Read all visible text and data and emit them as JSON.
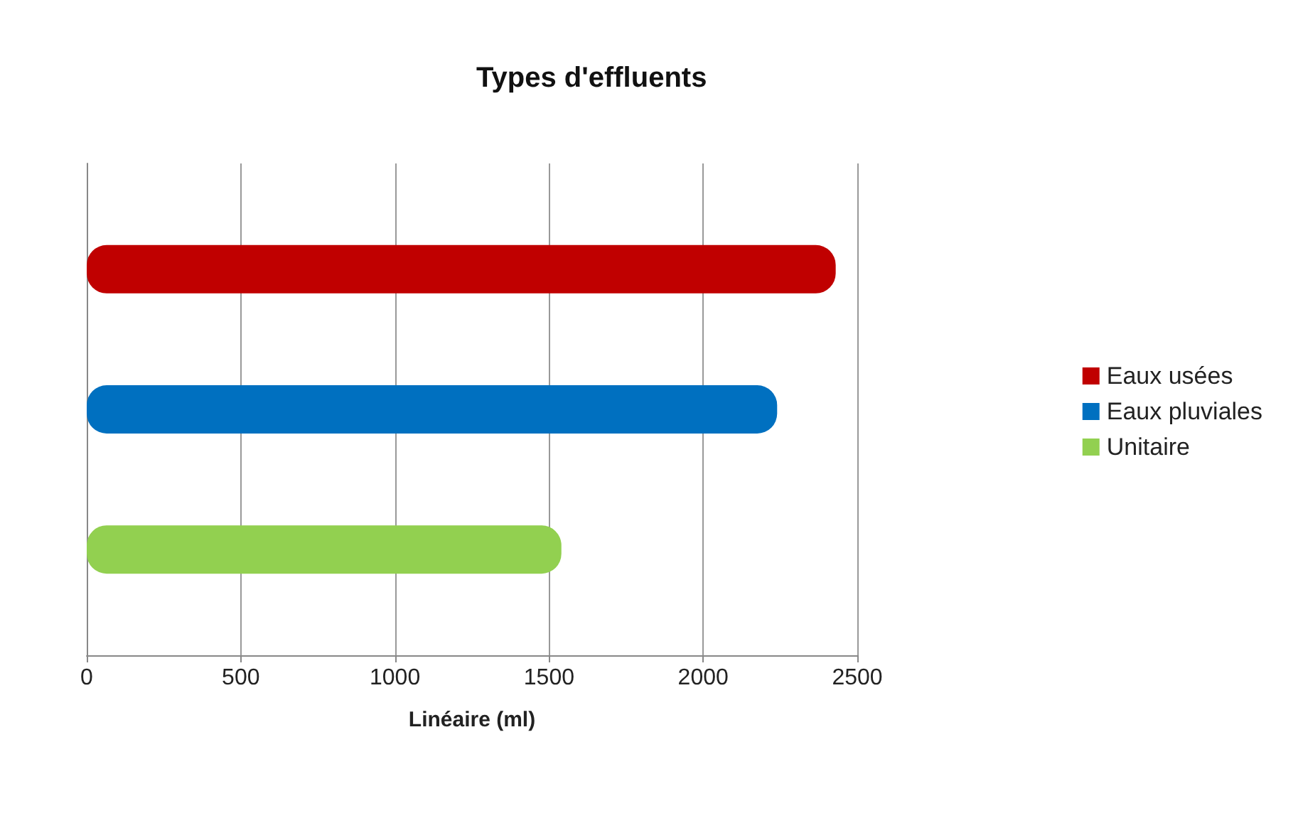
{
  "chart_data": {
    "type": "bar",
    "orientation": "horizontal",
    "title": "Types d'effluents",
    "xlabel": "Linéaire (ml)",
    "categories": [
      null
    ],
    "series": [
      {
        "name": "Eaux usées",
        "color": "#c00000",
        "values": [
          2430
        ]
      },
      {
        "name": "Eaux pluviales",
        "color": "#0070c0",
        "values": [
          2240
        ]
      },
      {
        "name": "Unitaire",
        "color": "#92d050",
        "values": [
          1540
        ]
      }
    ],
    "xlim": [
      0,
      2500
    ],
    "xticks": [
      0,
      500,
      1000,
      1500,
      2000,
      2500
    ],
    "grid": "x",
    "legend": "right"
  }
}
